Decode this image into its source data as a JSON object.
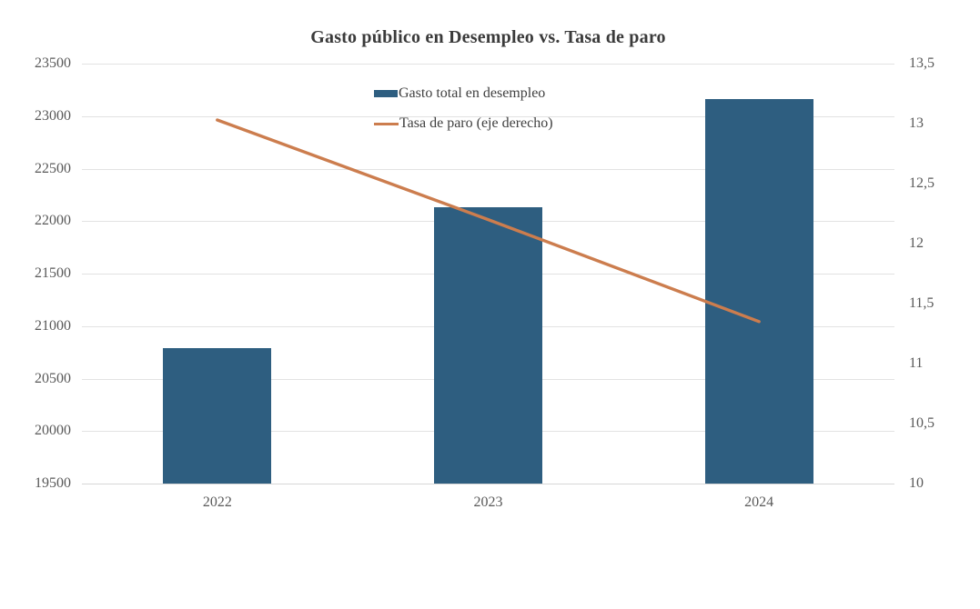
{
  "title": "Gasto público en Desempleo vs. Tasa de paro",
  "chart_data": {
    "type": "bar+line dual-axis combo",
    "categories": [
      "2022",
      "2023",
      "2024"
    ],
    "series": [
      {
        "name": "Gasto total en desempleo",
        "type": "bar",
        "axis": "left",
        "color": "#2e5e80",
        "values": [
          20790,
          22130,
          23165
        ]
      },
      {
        "name": "Tasa de paro (eje derecho)",
        "type": "line",
        "axis": "right",
        "color": "#cc7d4e",
        "values": [
          13.03,
          12.2,
          11.35
        ]
      }
    ],
    "left_axis": {
      "min": 19500,
      "max": 23500,
      "tick_step": 500,
      "ticks": [
        "23500",
        "23000",
        "22500",
        "22000",
        "21500",
        "21000",
        "20500",
        "20000",
        "19500"
      ]
    },
    "right_axis": {
      "min": 10,
      "max": 13.5,
      "tick_step": 0.5,
      "ticks": [
        "13,5",
        "13",
        "12,5",
        "12",
        "11,5",
        "11",
        "10,5",
        "10"
      ]
    },
    "grid": "horizontal gridlines on, light gray",
    "legend_position": "top-center, two stacked rows",
    "colors": {
      "bar": "#2e5e80",
      "line": "#cc7d4e",
      "gridline": "#e2e2e2",
      "tick_text": "#595959",
      "title_text": "#3a3a3a"
    }
  }
}
